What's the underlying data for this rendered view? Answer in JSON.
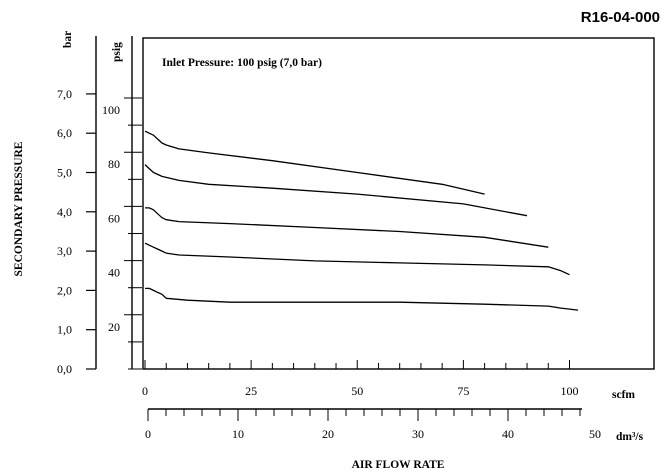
{
  "chart_data": {
    "type": "line",
    "code": "R16-04-000",
    "annotation": "Inlet Pressure:  100 psig (7,0 bar)",
    "ylabel": "SECONDARY PRESSURE",
    "xlabel": "AIR FLOW RATE",
    "y_unit_bar": "bar",
    "y_unit_psig": "psig",
    "x_unit_scfm": "scfm",
    "x_unit_dm3s": "dm³/s",
    "bar_ticks": [
      "0,0",
      "1,0",
      "2,0",
      "3,0",
      "4,0",
      "5,0",
      "6,0",
      "7,0"
    ],
    "psig_ticks": [
      "20",
      "40",
      "60",
      "80",
      "100"
    ],
    "scfm_ticks": [
      "0",
      "25",
      "50",
      "75",
      "100"
    ],
    "dm3s_ticks": [
      "0",
      "10",
      "20",
      "30",
      "40",
      "50"
    ],
    "xlim_scfm": [
      0,
      105
    ],
    "ylim_bar": [
      0,
      7.0
    ],
    "series": [
      {
        "x": [
          0,
          1,
          2,
          3,
          4,
          5,
          8,
          15,
          30,
          50,
          70,
          80
        ],
        "y": [
          6.05,
          6.0,
          5.95,
          5.85,
          5.75,
          5.7,
          5.6,
          5.5,
          5.3,
          5.0,
          4.7,
          4.45
        ]
      },
      {
        "x": [
          0,
          1,
          2,
          4,
          6,
          8,
          15,
          30,
          50,
          75,
          90
        ],
        "y": [
          5.2,
          5.1,
          5.0,
          4.9,
          4.85,
          4.8,
          4.7,
          4.6,
          4.45,
          4.2,
          3.9
        ]
      },
      {
        "x": [
          0,
          1,
          2,
          3,
          4,
          5,
          8,
          20,
          40,
          60,
          80,
          95
        ],
        "y": [
          4.1,
          4.1,
          4.05,
          3.95,
          3.85,
          3.8,
          3.75,
          3.7,
          3.6,
          3.5,
          3.35,
          3.1
        ]
      },
      {
        "x": [
          0,
          1,
          2,
          3,
          4,
          5,
          8,
          20,
          40,
          60,
          80,
          95,
          98,
          100
        ],
        "y": [
          3.2,
          3.15,
          3.1,
          3.05,
          3.0,
          2.95,
          2.9,
          2.85,
          2.75,
          2.7,
          2.65,
          2.6,
          2.5,
          2.4
        ]
      },
      {
        "x": [
          0,
          1,
          2,
          3,
          4,
          5,
          10,
          20,
          40,
          60,
          80,
          95,
          98,
          102
        ],
        "y": [
          2.05,
          2.05,
          2.0,
          1.95,
          1.9,
          1.8,
          1.75,
          1.7,
          1.7,
          1.7,
          1.65,
          1.6,
          1.55,
          1.5
        ]
      }
    ]
  }
}
